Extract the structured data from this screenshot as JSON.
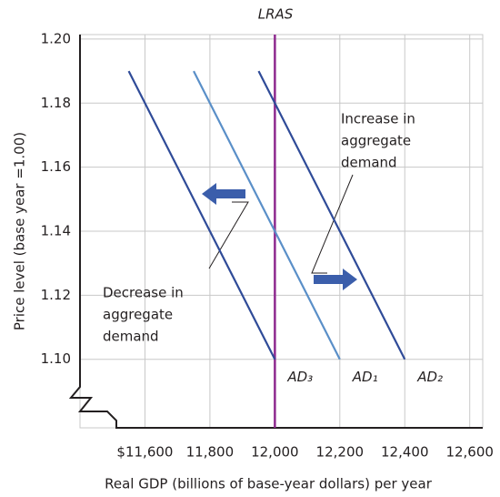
{
  "chart_data": {
    "type": "line",
    "title": "LRAS",
    "xlabel": "Real GDP (billions of base-year dollars) per year",
    "ylabel": "Price level (base year =1.00)",
    "xlim": [
      11400,
      12640
    ],
    "ylim": [
      1.0786,
      1.2014
    ],
    "xticks": [
      {
        "value": 11600,
        "label": "$11,600"
      },
      {
        "value": 11800,
        "label": "11,800"
      },
      {
        "value": 12000,
        "label": "12,000"
      },
      {
        "value": 12200,
        "label": "12,200"
      },
      {
        "value": 12400,
        "label": "12,400"
      },
      {
        "value": 12600,
        "label": "12,600"
      }
    ],
    "yticks": [
      {
        "value": 1.1,
        "label": "1.10"
      },
      1.12,
      1.14,
      1.16,
      1.18,
      {
        "value": 1.2,
        "label": "1.20"
      }
    ],
    "grid": true,
    "lras": {
      "x": 12000,
      "color": "#8e2a8f"
    },
    "series": [
      {
        "name": "AD₃",
        "color": "#2f4b98",
        "x": [
          11550,
          12000
        ],
        "values": [
          1.19,
          1.1
        ]
      },
      {
        "name": "AD₁",
        "color": "#5a8fc8",
        "x": [
          11750,
          12200
        ],
        "values": [
          1.19,
          1.1
        ]
      },
      {
        "name": "AD₂",
        "color": "#2f4b98",
        "x": [
          11950,
          12400
        ],
        "values": [
          1.19,
          1.1
        ]
      }
    ],
    "annotations": [
      {
        "lines": [
          "Increase in",
          "aggregate",
          "demand"
        ]
      },
      {
        "lines": [
          "Decrease in",
          "aggregate",
          "demand"
        ]
      }
    ]
  }
}
